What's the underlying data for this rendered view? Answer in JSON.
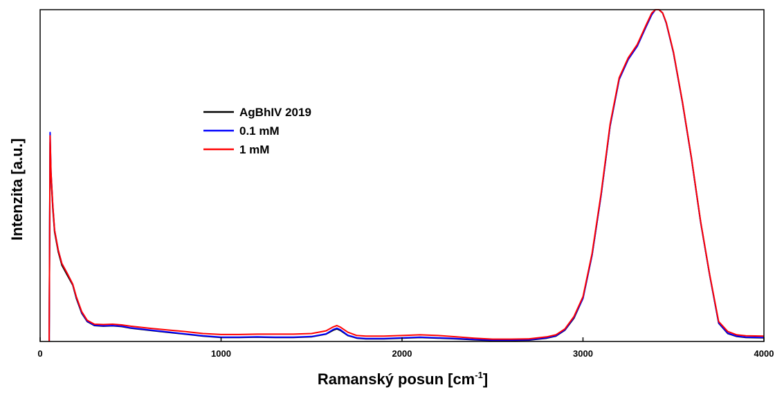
{
  "chart_data": {
    "type": "line",
    "title": "",
    "xlabel": {
      "main": "Ramanský posun [cm",
      "sup": "-1",
      "tail": "]"
    },
    "ylabel": "Intenzita [a.u.]",
    "xlim": [
      0,
      4000
    ],
    "ylim": [
      0,
      1
    ],
    "xticks": [
      0,
      1000,
      2000,
      3000,
      4000
    ],
    "yticks_shown": false,
    "grid": false,
    "legend_position": "upper-left-center",
    "series": [
      {
        "name": "AgBhIV 2019",
        "color": "#000000",
        "x": [
          50,
          55,
          60,
          70,
          80,
          100,
          120,
          150,
          180,
          200,
          230,
          260,
          300,
          350,
          400,
          450,
          500,
          600,
          700,
          800,
          900,
          1000,
          1100,
          1200,
          1300,
          1400,
          1500,
          1580,
          1620,
          1640,
          1660,
          1700,
          1750,
          1800,
          1900,
          2000,
          2100,
          2200,
          2300,
          2400,
          2500,
          2600,
          2700,
          2800,
          2850,
          2900,
          2950,
          3000,
          3050,
          3100,
          3150,
          3200,
          3250,
          3300,
          3350,
          3380,
          3400,
          3420,
          3440,
          3460,
          3500,
          3550,
          3600,
          3650,
          3700,
          3750,
          3800,
          3850,
          3900,
          4000
        ],
        "y": [
          0.02,
          0.6,
          0.5,
          0.4,
          0.33,
          0.27,
          0.23,
          0.2,
          0.17,
          0.13,
          0.085,
          0.06,
          0.048,
          0.046,
          0.047,
          0.045,
          0.04,
          0.034,
          0.028,
          0.022,
          0.016,
          0.012,
          0.012,
          0.013,
          0.012,
          0.012,
          0.014,
          0.022,
          0.034,
          0.038,
          0.033,
          0.018,
          0.01,
          0.008,
          0.008,
          0.01,
          0.012,
          0.01,
          0.008,
          0.005,
          0.003,
          0.003,
          0.004,
          0.01,
          0.016,
          0.034,
          0.07,
          0.13,
          0.26,
          0.44,
          0.65,
          0.79,
          0.85,
          0.89,
          0.95,
          0.985,
          1.0,
          1.0,
          0.99,
          0.96,
          0.87,
          0.72,
          0.55,
          0.36,
          0.2,
          0.055,
          0.024,
          0.015,
          0.012,
          0.011
        ]
      },
      {
        "name": "0.1 mM",
        "color": "#0000ff",
        "x": [
          50,
          55,
          60,
          70,
          80,
          100,
          120,
          150,
          180,
          200,
          230,
          260,
          300,
          350,
          400,
          450,
          500,
          600,
          700,
          800,
          900,
          1000,
          1100,
          1200,
          1300,
          1400,
          1500,
          1580,
          1620,
          1640,
          1660,
          1700,
          1750,
          1800,
          1900,
          2000,
          2100,
          2200,
          2300,
          2400,
          2500,
          2600,
          2700,
          2800,
          2850,
          2900,
          2950,
          3000,
          3050,
          3100,
          3150,
          3200,
          3250,
          3300,
          3350,
          3380,
          3400,
          3420,
          3440,
          3460,
          3500,
          3550,
          3600,
          3650,
          3700,
          3750,
          3800,
          3850,
          3900,
          4000
        ],
        "y": [
          0.02,
          0.63,
          0.51,
          0.41,
          0.335,
          0.275,
          0.235,
          0.205,
          0.172,
          0.133,
          0.087,
          0.061,
          0.049,
          0.047,
          0.048,
          0.046,
          0.041,
          0.035,
          0.029,
          0.023,
          0.017,
          0.013,
          0.013,
          0.014,
          0.013,
          0.013,
          0.015,
          0.023,
          0.036,
          0.04,
          0.035,
          0.019,
          0.011,
          0.009,
          0.009,
          0.011,
          0.013,
          0.011,
          0.009,
          0.006,
          0.004,
          0.004,
          0.005,
          0.011,
          0.017,
          0.035,
          0.072,
          0.13,
          0.26,
          0.44,
          0.65,
          0.79,
          0.85,
          0.89,
          0.95,
          0.985,
          1.0,
          1.0,
          0.99,
          0.96,
          0.87,
          0.72,
          0.55,
          0.36,
          0.2,
          0.056,
          0.025,
          0.016,
          0.013,
          0.012
        ]
      },
      {
        "name": "1 mM",
        "color": "#ff0000",
        "x": [
          50,
          55,
          60,
          70,
          80,
          100,
          120,
          150,
          180,
          200,
          230,
          260,
          300,
          350,
          400,
          450,
          500,
          600,
          700,
          800,
          900,
          1000,
          1100,
          1200,
          1300,
          1400,
          1500,
          1580,
          1620,
          1640,
          1660,
          1700,
          1750,
          1800,
          1900,
          2000,
          2100,
          2200,
          2300,
          2400,
          2500,
          2600,
          2700,
          2800,
          2850,
          2900,
          2950,
          3000,
          3050,
          3100,
          3150,
          3200,
          3250,
          3300,
          3350,
          3380,
          3400,
          3420,
          3440,
          3460,
          3500,
          3550,
          3600,
          3650,
          3700,
          3750,
          3800,
          3850,
          3900,
          4000
        ],
        "y": [
          0.02,
          0.62,
          0.51,
          0.41,
          0.335,
          0.275,
          0.235,
          0.205,
          0.173,
          0.135,
          0.09,
          0.064,
          0.052,
          0.051,
          0.052,
          0.05,
          0.046,
          0.04,
          0.035,
          0.03,
          0.024,
          0.021,
          0.021,
          0.022,
          0.022,
          0.022,
          0.024,
          0.032,
          0.044,
          0.048,
          0.043,
          0.028,
          0.018,
          0.016,
          0.016,
          0.018,
          0.02,
          0.018,
          0.014,
          0.01,
          0.007,
          0.007,
          0.008,
          0.014,
          0.02,
          0.038,
          0.075,
          0.135,
          0.265,
          0.445,
          0.655,
          0.795,
          0.855,
          0.895,
          0.955,
          0.99,
          1.0,
          1.0,
          0.99,
          0.962,
          0.872,
          0.722,
          0.552,
          0.362,
          0.202,
          0.06,
          0.03,
          0.02,
          0.017,
          0.016
        ]
      }
    ]
  }
}
